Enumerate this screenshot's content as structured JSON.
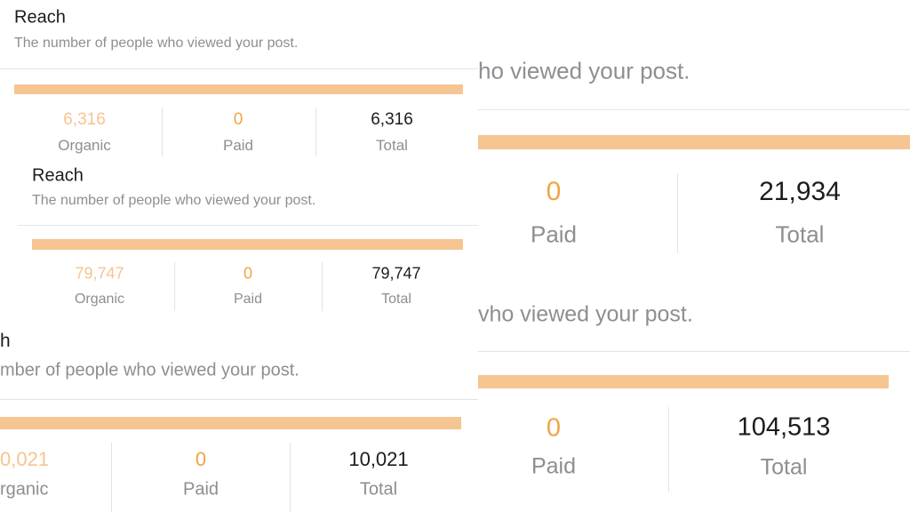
{
  "panels": [
    {
      "subtitle": "ho viewed your post.",
      "metrics": [
        {
          "value": "0",
          "label": "Paid"
        },
        {
          "value": "21,934",
          "label": "Total"
        }
      ]
    },
    {
      "subtitle": "vho viewed your post.",
      "metrics": [
        {
          "value": "0",
          "label": "Paid"
        },
        {
          "value": "104,513",
          "label": "Total"
        }
      ]
    },
    {
      "title": "Reach",
      "subtitle": "The number of people who viewed your post.",
      "metrics": [
        {
          "value": "6,316",
          "label": "Organic"
        },
        {
          "value": "0",
          "label": "Paid"
        },
        {
          "value": "6,316",
          "label": "Total"
        }
      ]
    },
    {
      "title": "Reach",
      "subtitle": "The number of people who viewed your post.",
      "metrics": [
        {
          "value": "79,747",
          "label": "Organic"
        },
        {
          "value": "0",
          "label": "Paid"
        },
        {
          "value": "79,747",
          "label": "Total"
        }
      ]
    },
    {
      "title": "h",
      "subtitle": "mber of people who viewed your post.",
      "metrics": [
        {
          "value": "0,021",
          "label": "rganic"
        },
        {
          "value": "0",
          "label": "Paid"
        },
        {
          "value": "10,021",
          "label": "Total"
        }
      ]
    }
  ]
}
